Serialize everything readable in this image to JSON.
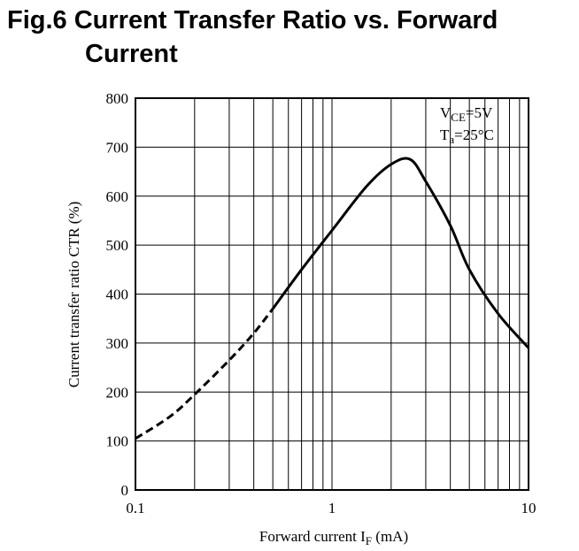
{
  "chart_data": {
    "type": "line",
    "title_line1": "Fig.6 Current Transfer Ratio vs. Forward",
    "title_line2": "Current",
    "xlabel": {
      "main": "Forward current I",
      "sub": "F",
      "unit": " (mA)"
    },
    "ylabel": "Current transfer ratio CTR (%)",
    "x_scale": "log",
    "xlim": [
      0.1,
      10
    ],
    "ylim": [
      0,
      800
    ],
    "grid": true,
    "x_ticks": [
      0.1,
      1,
      10
    ],
    "x_tick_labels": [
      "0.1",
      "1",
      "10"
    ],
    "y_ticks": [
      0,
      100,
      200,
      300,
      400,
      500,
      600,
      700,
      800
    ],
    "y_tick_labels": [
      "0",
      "100",
      "200",
      "300",
      "400",
      "500",
      "600",
      "700",
      "800"
    ],
    "conditions": [
      {
        "main": "V",
        "sub": "CE",
        "value": "=5V"
      },
      {
        "main": "T",
        "sub": "a",
        "value": "=25°C"
      }
    ],
    "series": [
      {
        "style": "dashed",
        "color": "#000000",
        "x": [
          0.1,
          0.15,
          0.2,
          0.3,
          0.4,
          0.5
        ],
        "y": [
          105,
          150,
          195,
          265,
          320,
          370
        ]
      },
      {
        "style": "solid",
        "color": "#000000",
        "x": [
          0.5,
          0.7,
          1.0,
          1.5,
          2.0,
          2.5,
          3.0,
          4.0,
          5.0,
          7.0,
          10.0
        ],
        "y": [
          370,
          450,
          530,
          620,
          665,
          675,
          630,
          540,
          450,
          360,
          290
        ]
      }
    ]
  }
}
